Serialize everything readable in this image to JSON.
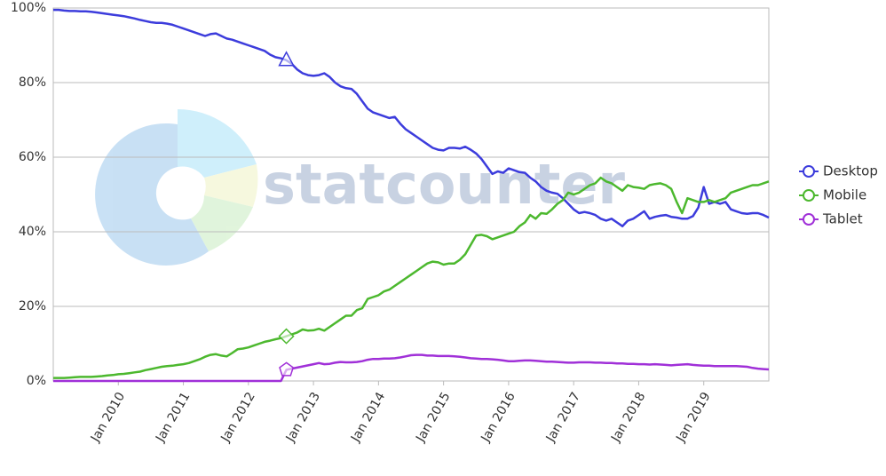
{
  "chart_data": {
    "type": "line",
    "watermark": "statcounter",
    "x": [
      "2009-01",
      "2009-02",
      "2009-03",
      "2009-04",
      "2009-05",
      "2009-06",
      "2009-07",
      "2009-08",
      "2009-09",
      "2009-10",
      "2009-11",
      "2009-12",
      "2010-01",
      "2010-02",
      "2010-03",
      "2010-04",
      "2010-05",
      "2010-06",
      "2010-07",
      "2010-08",
      "2010-09",
      "2010-10",
      "2010-11",
      "2010-12",
      "2011-01",
      "2011-02",
      "2011-03",
      "2011-04",
      "2011-05",
      "2011-06",
      "2011-07",
      "2011-08",
      "2011-09",
      "2011-10",
      "2011-11",
      "2011-12",
      "2012-01",
      "2012-02",
      "2012-03",
      "2012-04",
      "2012-05",
      "2012-06",
      "2012-07",
      "2012-08",
      "2012-09",
      "2012-10",
      "2012-11",
      "2012-12",
      "2013-01",
      "2013-02",
      "2013-03",
      "2013-04",
      "2013-05",
      "2013-06",
      "2013-07",
      "2013-08",
      "2013-09",
      "2013-10",
      "2013-11",
      "2013-12",
      "2014-01",
      "2014-02",
      "2014-03",
      "2014-04",
      "2014-05",
      "2014-06",
      "2014-07",
      "2014-08",
      "2014-09",
      "2014-10",
      "2014-11",
      "2014-12",
      "2015-01",
      "2015-02",
      "2015-03",
      "2015-04",
      "2015-05",
      "2015-06",
      "2015-07",
      "2015-08",
      "2015-09",
      "2015-10",
      "2015-11",
      "2015-12",
      "2016-01",
      "2016-02",
      "2016-03",
      "2016-04",
      "2016-05",
      "2016-06",
      "2016-07",
      "2016-08",
      "2016-09",
      "2016-10",
      "2016-11",
      "2016-12",
      "2017-01",
      "2017-02",
      "2017-03",
      "2017-04",
      "2017-05",
      "2017-06",
      "2017-07",
      "2017-08",
      "2017-09",
      "2017-10",
      "2017-11",
      "2017-12",
      "2018-01",
      "2018-02",
      "2018-03",
      "2018-04",
      "2018-05",
      "2018-06",
      "2018-07",
      "2018-08",
      "2018-09",
      "2018-10",
      "2018-11",
      "2018-12",
      "2019-01",
      "2019-02",
      "2019-03",
      "2019-04",
      "2019-05",
      "2019-06",
      "2019-07",
      "2019-08",
      "2019-09",
      "2019-10",
      "2019-11",
      "2019-12",
      "2020-01"
    ],
    "series": [
      {
        "name": "Desktop",
        "color": "#3c3cdc",
        "marker_index": 43,
        "marker": "triangle",
        "values": [
          99.5,
          99.5,
          99.3,
          99.2,
          99.2,
          99.1,
          99.1,
          99.0,
          98.8,
          98.6,
          98.4,
          98.2,
          98.0,
          97.8,
          97.5,
          97.2,
          96.8,
          96.5,
          96.2,
          96.0,
          96.0,
          95.8,
          95.5,
          95.0,
          94.5,
          94.0,
          93.5,
          93.0,
          92.5,
          93.0,
          93.2,
          92.5,
          91.8,
          91.5,
          91.0,
          90.5,
          90.0,
          89.5,
          89.0,
          88.5,
          87.5,
          86.8,
          86.5,
          86.0,
          85.0,
          83.5,
          82.5,
          82.0,
          81.8,
          82.0,
          82.5,
          81.5,
          80.0,
          79.0,
          78.5,
          78.3,
          77.0,
          75.0,
          73.0,
          72.0,
          71.5,
          71.0,
          70.5,
          70.8,
          69.0,
          67.5,
          66.5,
          65.5,
          64.5,
          63.5,
          62.5,
          62.0,
          61.8,
          62.5,
          62.5,
          62.3,
          62.8,
          62.0,
          61.0,
          59.5,
          57.5,
          55.5,
          56.2,
          55.8,
          57.0,
          56.5,
          56.0,
          55.8,
          54.5,
          53.5,
          52.0,
          51.0,
          50.5,
          50.2,
          49.0,
          47.5,
          46.0,
          45.0,
          45.3,
          45.0,
          44.5,
          43.5,
          43.0,
          43.5,
          42.5,
          41.5,
          43.0,
          43.5,
          44.5,
          45.5,
          43.5,
          44.0,
          44.3,
          44.5,
          44.0,
          43.8,
          43.5,
          43.5,
          44.2,
          46.5,
          52.0,
          47.5,
          48.0,
          47.5,
          48.0,
          46.0,
          45.5,
          45.0,
          44.8,
          45.0,
          45.0,
          44.5,
          43.8
        ]
      },
      {
        "name": "Mobile",
        "color": "#4cb82e",
        "marker_index": 43,
        "marker": "diamond",
        "values": [
          0.8,
          0.8,
          0.8,
          0.9,
          1.0,
          1.1,
          1.1,
          1.1,
          1.2,
          1.3,
          1.5,
          1.6,
          1.8,
          1.9,
          2.1,
          2.3,
          2.5,
          2.9,
          3.2,
          3.5,
          3.8,
          4.0,
          4.1,
          4.3,
          4.5,
          4.8,
          5.3,
          5.8,
          6.5,
          7.0,
          7.2,
          6.8,
          6.6,
          7.5,
          8.5,
          8.7,
          9.0,
          9.5,
          10.0,
          10.5,
          10.8,
          11.2,
          11.5,
          12.0,
          12.5,
          13.0,
          13.8,
          13.5,
          13.6,
          14.0,
          13.5,
          14.5,
          15.5,
          16.5,
          17.5,
          17.5,
          19.0,
          19.5,
          22.0,
          22.5,
          23.0,
          24.0,
          24.5,
          25.5,
          26.5,
          27.5,
          28.5,
          29.5,
          30.5,
          31.5,
          32.0,
          31.8,
          31.2,
          31.5,
          31.5,
          32.5,
          34.0,
          36.5,
          39.0,
          39.2,
          38.8,
          38.0,
          38.5,
          39.0,
          39.5,
          40.0,
          41.5,
          42.5,
          44.5,
          43.5,
          45.0,
          44.8,
          46.0,
          47.5,
          48.5,
          50.5,
          50.0,
          50.5,
          51.5,
          52.5,
          53.0,
          54.5,
          53.5,
          53.0,
          52.0,
          51.0,
          52.5,
          52.0,
          51.8,
          51.5,
          52.5,
          52.8,
          53.0,
          52.5,
          51.5,
          48.0,
          45.0,
          49.0,
          48.5,
          48.0,
          48.0,
          48.5,
          48.0,
          48.5,
          49.0,
          50.5,
          51.0,
          51.5,
          52.0,
          52.5,
          52.5,
          53.0,
          53.5
        ]
      },
      {
        "name": "Tablet",
        "color": "#a030d8",
        "marker_index": 43,
        "marker": "pentagon",
        "values": [
          0,
          0,
          0,
          0,
          0,
          0,
          0,
          0,
          0,
          0,
          0,
          0,
          0,
          0,
          0,
          0,
          0,
          0,
          0,
          0,
          0,
          0,
          0,
          0,
          0,
          0,
          0,
          0,
          0,
          0,
          0,
          0,
          0,
          0,
          0,
          0,
          0,
          0,
          0,
          0,
          0,
          0,
          0,
          3.0,
          3.3,
          3.6,
          3.9,
          4.2,
          4.5,
          4.8,
          4.5,
          4.6,
          4.9,
          5.1,
          5.0,
          5.0,
          5.1,
          5.3,
          5.7,
          5.9,
          5.9,
          6.0,
          6.0,
          6.1,
          6.3,
          6.6,
          6.9,
          7.0,
          7.0,
          6.8,
          6.8,
          6.7,
          6.7,
          6.7,
          6.6,
          6.5,
          6.3,
          6.1,
          6.0,
          5.9,
          5.9,
          5.8,
          5.7,
          5.5,
          5.3,
          5.3,
          5.4,
          5.5,
          5.5,
          5.4,
          5.3,
          5.2,
          5.2,
          5.1,
          5.0,
          4.9,
          4.9,
          5.0,
          5.0,
          5.0,
          4.9,
          4.9,
          4.8,
          4.8,
          4.7,
          4.7,
          4.6,
          4.6,
          4.5,
          4.5,
          4.4,
          4.5,
          4.4,
          4.3,
          4.2,
          4.3,
          4.4,
          4.5,
          4.3,
          4.2,
          4.1,
          4.1,
          4.0,
          4.0,
          4.0,
          4.0,
          4.0,
          3.9,
          3.8,
          3.5,
          3.3,
          3.2,
          3.1
        ]
      }
    ],
    "xlim": [
      "2009-01",
      "2020-01"
    ],
    "xticks": [
      {
        "value": "2010-01",
        "label": "Jan 2010"
      },
      {
        "value": "2011-01",
        "label": "Jan 2011"
      },
      {
        "value": "2012-01",
        "label": "Jan 2012"
      },
      {
        "value": "2013-01",
        "label": "Jan 2013"
      },
      {
        "value": "2014-01",
        "label": "Jan 2014"
      },
      {
        "value": "2015-01",
        "label": "Jan 2015"
      },
      {
        "value": "2016-01",
        "label": "Jan 2016"
      },
      {
        "value": "2017-01",
        "label": "Jan 2017"
      },
      {
        "value": "2018-01",
        "label": "Jan 2018"
      },
      {
        "value": "2019-01",
        "label": "Jan 2019"
      }
    ],
    "ylim": [
      0,
      100
    ],
    "yticks": [
      {
        "value": 0,
        "label": "0%"
      },
      {
        "value": 20,
        "label": "20%"
      },
      {
        "value": 40,
        "label": "40%"
      },
      {
        "value": 60,
        "label": "60%"
      },
      {
        "value": 80,
        "label": "80%"
      },
      {
        "value": 100,
        "label": "100%"
      }
    ],
    "grid": true,
    "legend": "right"
  }
}
